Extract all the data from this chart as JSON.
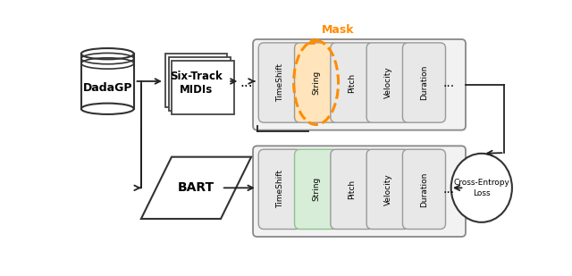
{
  "bg_color": "#ffffff",
  "token_labels": [
    "TimeShift",
    "String",
    "Pitch",
    "Velocity",
    "Duration"
  ],
  "mask_color": "#FF8C00",
  "orange_fill": "#FFE4BC",
  "green_fill": "#D8EDD8",
  "green_border": "#90C090",
  "card_fill": "#E8E8E8",
  "card_border": "#999999",
  "box_fill": "#EFEFEF",
  "box_border": "#888888",
  "arrow_color": "#222222",
  "white": "#ffffff"
}
